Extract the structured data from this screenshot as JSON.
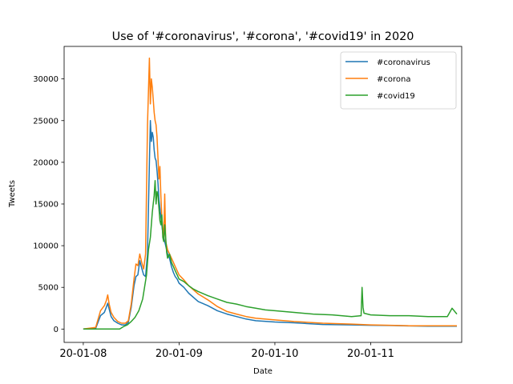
{
  "chart_data": {
    "type": "line",
    "title": "Use of '#coronavirus', '#corona', '#covid19' in 2020",
    "xlabel": "Date",
    "ylabel": "Tweets",
    "x_ticks": [
      "20-01-08",
      "20-01-09",
      "20-01-10",
      "20-01-11"
    ],
    "y_ticks": [
      0,
      5000,
      10000,
      15000,
      20000,
      25000,
      30000
    ],
    "ylim": [
      -1600,
      33900
    ],
    "xlim": [
      -0.2,
      3.95
    ],
    "legend_position": "top-right",
    "grid": false,
    "x_unit_note": "x values are days offset from 20-01-08 (tick 20-01-08 = 0, 20-01-09 = 1, ...)",
    "series": [
      {
        "name": "#coronavirus",
        "color": "#1f77b4",
        "x": [
          0.0,
          0.13,
          0.18,
          0.22,
          0.24,
          0.255,
          0.27,
          0.29,
          0.32,
          0.36,
          0.4,
          0.44,
          0.47,
          0.5,
          0.53,
          0.55,
          0.57,
          0.59,
          0.61,
          0.63,
          0.65,
          0.67,
          0.69,
          0.7,
          0.71,
          0.72,
          0.73,
          0.74,
          0.75,
          0.76,
          0.77,
          0.78,
          0.79,
          0.8,
          0.81,
          0.82,
          0.83,
          0.85,
          0.87,
          0.88,
          0.9,
          0.92,
          0.94,
          0.96,
          0.98,
          1.0,
          1.05,
          1.1,
          1.2,
          1.3,
          1.4,
          1.5,
          1.6,
          1.7,
          1.8,
          2.0,
          2.2,
          2.5,
          2.8,
          3.0,
          3.2,
          3.4,
          3.6,
          3.8,
          3.9
        ],
        "y": [
          0,
          100,
          1600,
          2000,
          2600,
          3100,
          2400,
          1500,
          1000,
          700,
          500,
          500,
          800,
          2600,
          5200,
          6300,
          6500,
          8200,
          7300,
          6500,
          6300,
          9000,
          20000,
          25000,
          22500,
          23600,
          23000,
          21500,
          20500,
          20200,
          19000,
          17500,
          15500,
          14500,
          13500,
          12500,
          11500,
          10500,
          9500,
          9000,
          8500,
          7500,
          6800,
          6300,
          6000,
          5500,
          5000,
          4300,
          3300,
          2800,
          2200,
          1800,
          1500,
          1200,
          1000,
          850,
          750,
          550,
          500,
          450,
          420,
          380,
          350,
          350,
          350
        ]
      },
      {
        "name": "#corona",
        "color": "#ff7f0e",
        "x": [
          0.0,
          0.13,
          0.18,
          0.22,
          0.24,
          0.255,
          0.27,
          0.29,
          0.32,
          0.36,
          0.4,
          0.44,
          0.47,
          0.5,
          0.53,
          0.55,
          0.57,
          0.59,
          0.61,
          0.63,
          0.65,
          0.67,
          0.69,
          0.7,
          0.71,
          0.72,
          0.73,
          0.74,
          0.75,
          0.76,
          0.77,
          0.78,
          0.79,
          0.8,
          0.81,
          0.82,
          0.83,
          0.84,
          0.85,
          0.86,
          0.87,
          0.88,
          0.9,
          0.92,
          0.94,
          0.96,
          0.98,
          1.0,
          1.05,
          1.1,
          1.2,
          1.3,
          1.4,
          1.5,
          1.6,
          1.7,
          1.8,
          2.0,
          2.2,
          2.5,
          2.8,
          3.0,
          3.2,
          3.4,
          3.6,
          3.8,
          3.9
        ],
        "y": [
          0,
          200,
          2200,
          2800,
          3400,
          4100,
          3000,
          2000,
          1400,
          900,
          700,
          700,
          1000,
          3000,
          6000,
          7800,
          7600,
          9000,
          8000,
          7200,
          9000,
          24500,
          32500,
          27000,
          30000,
          29000,
          27500,
          26000,
          25000,
          24500,
          23000,
          20500,
          18000,
          19500,
          16000,
          13500,
          12000,
          11000,
          16200,
          10500,
          10000,
          9500,
          9000,
          8500,
          8000,
          7500,
          7000,
          6500,
          5900,
          5200,
          4200,
          3500,
          2700,
          2100,
          1800,
          1500,
          1300,
          1100,
          900,
          700,
          600,
          500,
          450,
          400,
          400,
          400,
          400
        ]
      },
      {
        "name": "#covid19",
        "color": "#2ca02c",
        "x": [
          0.0,
          0.38,
          0.42,
          0.46,
          0.5,
          0.54,
          0.58,
          0.62,
          0.66,
          0.68,
          0.7,
          0.72,
          0.74,
          0.75,
          0.76,
          0.77,
          0.78,
          0.79,
          0.8,
          0.81,
          0.82,
          0.83,
          0.84,
          0.85,
          0.86,
          0.87,
          0.88,
          0.9,
          0.92,
          0.94,
          0.96,
          0.98,
          1.0,
          1.05,
          1.1,
          1.15,
          1.2,
          1.3,
          1.4,
          1.5,
          1.6,
          1.7,
          1.8,
          1.9,
          2.0,
          2.2,
          2.4,
          2.6,
          2.8,
          2.9,
          2.91,
          2.92,
          2.93,
          3.0,
          3.2,
          3.4,
          3.6,
          3.8,
          3.85,
          3.9
        ],
        "y": [
          0,
          0,
          300,
          500,
          900,
          1400,
          2200,
          3600,
          6500,
          9500,
          11000,
          14000,
          16000,
          17800,
          15000,
          16500,
          16000,
          14500,
          13000,
          12500,
          13700,
          11000,
          10500,
          12500,
          11000,
          9200,
          8500,
          9000,
          8000,
          7500,
          7000,
          6500,
          6000,
          5700,
          5200,
          4800,
          4500,
          4000,
          3600,
          3200,
          3000,
          2700,
          2500,
          2300,
          2200,
          2000,
          1800,
          1700,
          1500,
          1600,
          5000,
          2600,
          1900,
          1700,
          1600,
          1600,
          1500,
          1500,
          2500,
          1800
        ]
      }
    ]
  }
}
